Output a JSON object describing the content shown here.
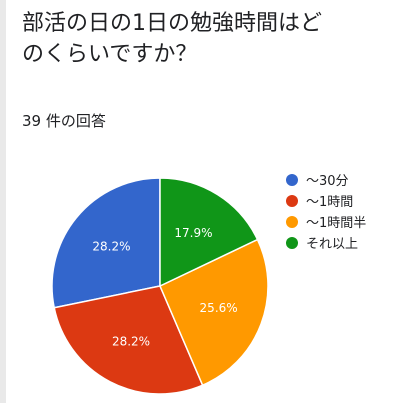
{
  "title": "部活の日の1日の勉強時間はどのくらいですか？",
  "response_count": "39 件の回答",
  "chart_data": {
    "type": "pie",
    "title": "部活の日の1日の勉強時間はどのくらいですか？",
    "legend_position": "right",
    "slices": [
      {
        "name": "〜30分",
        "value": 28.2,
        "label": "28.2%",
        "color": "#3366cc"
      },
      {
        "name": "〜1時間",
        "value": 28.2,
        "label": "28.2%",
        "color": "#dc3912"
      },
      {
        "name": "〜1時間半",
        "value": 25.6,
        "label": "25.6%",
        "color": "#ff9900"
      },
      {
        "name": "それ以上",
        "value": 17.9,
        "label": "17.9%",
        "color": "#109618"
      }
    ]
  }
}
